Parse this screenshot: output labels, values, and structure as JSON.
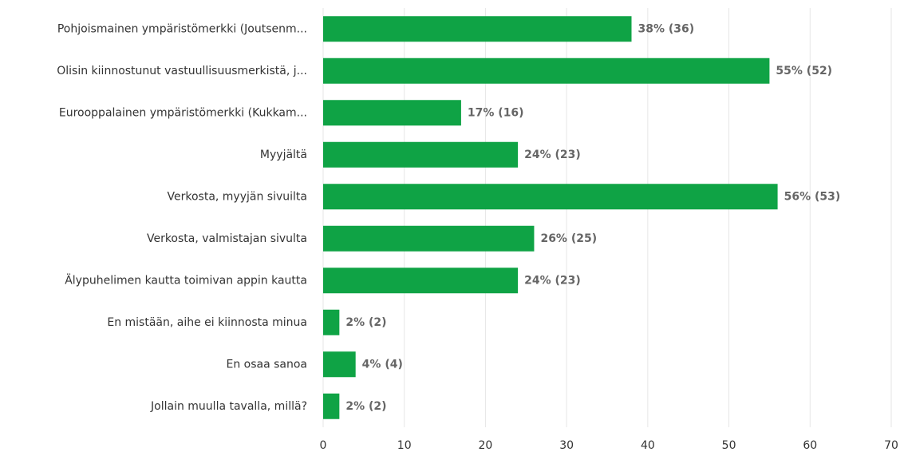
{
  "chart_data": {
    "type": "bar",
    "orientation": "horizontal",
    "categories": [
      "Pohjoismainen ympäristömerkki (Joutsenm...",
      "Olisin kiinnostunut vastuullisuusmerkistä, j...",
      "Eurooppalainen ympäristömerkki (Kukkam...",
      "Myyjältä",
      "Verkosta, myyjän sivuilta",
      "Verkosta, valmistajan sivulta",
      "Älypuhelimen kautta toimivan appin kautta",
      "En mistään, aihe ei kiinnosta minua",
      "En osaa sanoa",
      "Jollain muulla tavalla, millä?"
    ],
    "values": [
      38,
      55,
      17,
      24,
      56,
      26,
      24,
      2,
      4,
      2
    ],
    "value_labels": [
      "38% (36)",
      "55% (52)",
      "17% (16)",
      "24% (23)",
      "56% (53)",
      "26% (25)",
      "24% (23)",
      "2% (2)",
      "4% (4)",
      "2% (2)"
    ],
    "color": "#0fa345",
    "xlim": [
      0,
      70
    ],
    "xticks": [
      0,
      10,
      20,
      30,
      40,
      50,
      60,
      70
    ],
    "grid": true
  }
}
